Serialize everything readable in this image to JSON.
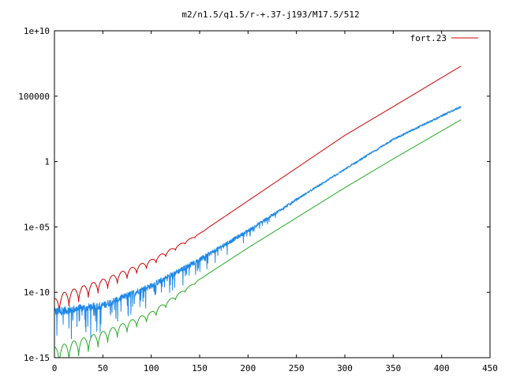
{
  "chart_data": {
    "type": "line",
    "title": "m2/n1.5/q1.5/r-+.37-j193/M17.5/512",
    "xlabel": "",
    "ylabel": "",
    "xlim": [
      0,
      450
    ],
    "ylim_log10": [
      -15,
      10
    ],
    "y_scale": "log",
    "x_ticks": [
      0,
      50,
      100,
      150,
      200,
      250,
      300,
      350,
      400,
      450
    ],
    "x_tick_labels": [
      "0",
      "50",
      "100",
      "150",
      "200",
      "250",
      "300",
      "350",
      "400",
      "450"
    ],
    "y_ticks_log10": [
      -15,
      -10,
      -5,
      0,
      5,
      10
    ],
    "y_tick_labels": [
      "1e-15",
      "1e-10",
      "1e-05",
      "1",
      "100000",
      "1e+10"
    ],
    "grid": false,
    "legend_position": "top-right",
    "legend_label": "fort.23",
    "series": [
      {
        "name": "fort.23",
        "color": "#cc0000",
        "style": "oscillating",
        "x": [
          0,
          10,
          50,
          100,
          150,
          200,
          250,
          300,
          350,
          420
        ],
        "log10_y": [
          -10.5,
          -10.0,
          -9.0,
          -7.5,
          -5.5,
          -3.0,
          -0.5,
          2.0,
          4.2,
          7.3
        ],
        "osc_period": 10,
        "osc_depth_log10": 1.3,
        "osc_end_x": 160
      },
      {
        "color": "#1e88e5",
        "style": "noisy",
        "x": [
          0,
          50,
          100,
          150,
          200,
          250,
          300,
          350,
          420
        ],
        "log10_y": [
          -11.5,
          -11.0,
          -9.5,
          -7.5,
          -5.3,
          -2.9,
          -0.6,
          1.7,
          4.2
        ],
        "noise_depth_log10": 2.5,
        "noise_end_x": 260
      },
      {
        "color": "#22aa22",
        "style": "oscillating",
        "x": [
          0,
          50,
          100,
          150,
          200,
          250,
          300,
          350,
          420
        ],
        "log10_y": [
          -14.2,
          -13.0,
          -11.5,
          -9.0,
          -6.6,
          -4.3,
          -2.0,
          0.2,
          3.2
        ],
        "osc_period": 10,
        "osc_depth_log10": 1.5,
        "osc_end_x": 160
      }
    ]
  }
}
